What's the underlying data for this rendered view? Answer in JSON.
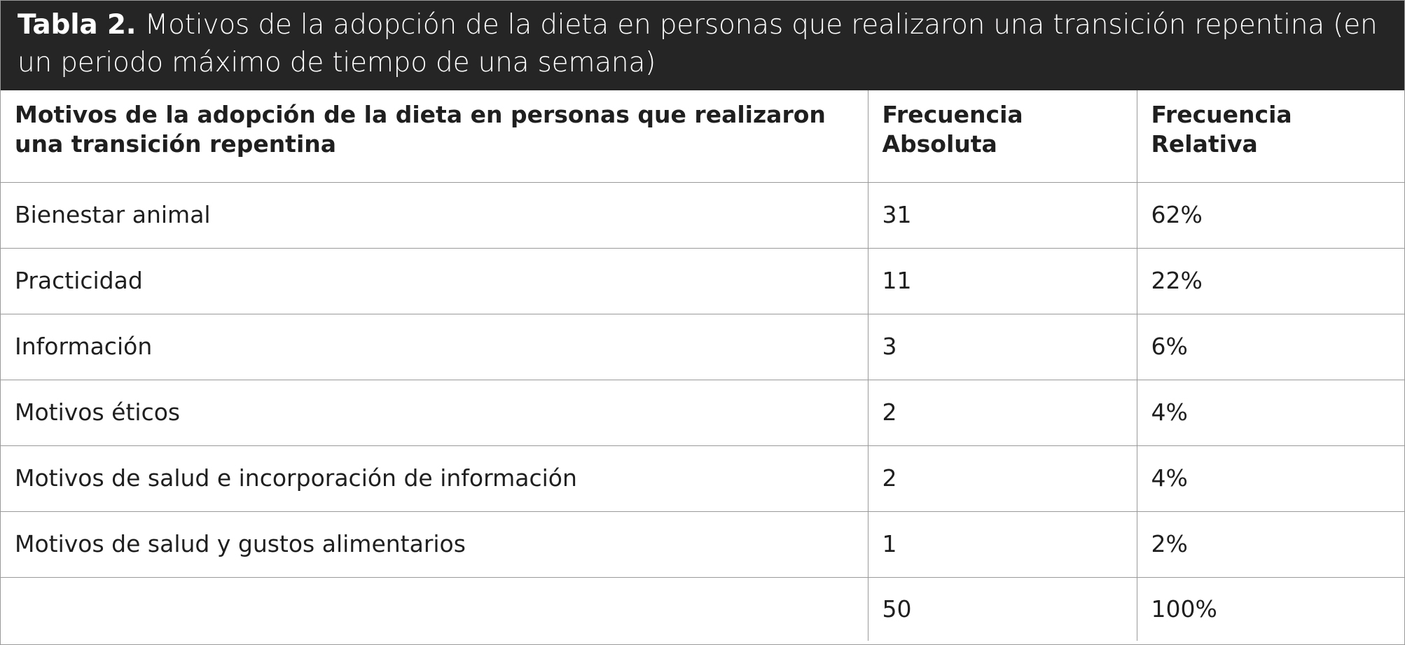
{
  "caption": {
    "label": "Tabla 2.",
    "text": "Motivos de la adopción de la dieta en personas que realizaron una transición repentina (en un periodo máximo de tiempo de una semana)"
  },
  "table": {
    "headers": [
      "Motivos de la adopción de la dieta en personas que realizaron una transición repentina",
      "Frecuencia Absoluta",
      "Frecuencia Relativa"
    ],
    "rows": [
      {
        "motivo": "Bienestar animal",
        "absoluta": "31",
        "relativa": "62%"
      },
      {
        "motivo": "Practicidad",
        "absoluta": "11",
        "relativa": "22%"
      },
      {
        "motivo": "Información",
        "absoluta": "3",
        "relativa": "6%"
      },
      {
        "motivo": "Motivos éticos",
        "absoluta": "2",
        "relativa": "4%"
      },
      {
        "motivo": "Motivos de salud e incorporación de información",
        "absoluta": "2",
        "relativa": "4%"
      },
      {
        "motivo": "Motivos de salud y gustos alimentarios",
        "absoluta": "1",
        "relativa": "2%"
      }
    ],
    "total": {
      "motivo": "",
      "absoluta": "50",
      "relativa": "100%"
    }
  },
  "colors": {
    "caption_background": "#262526",
    "caption_text": "#ffffff",
    "border": "#9a9a9a",
    "text": "#1f1f1f"
  }
}
